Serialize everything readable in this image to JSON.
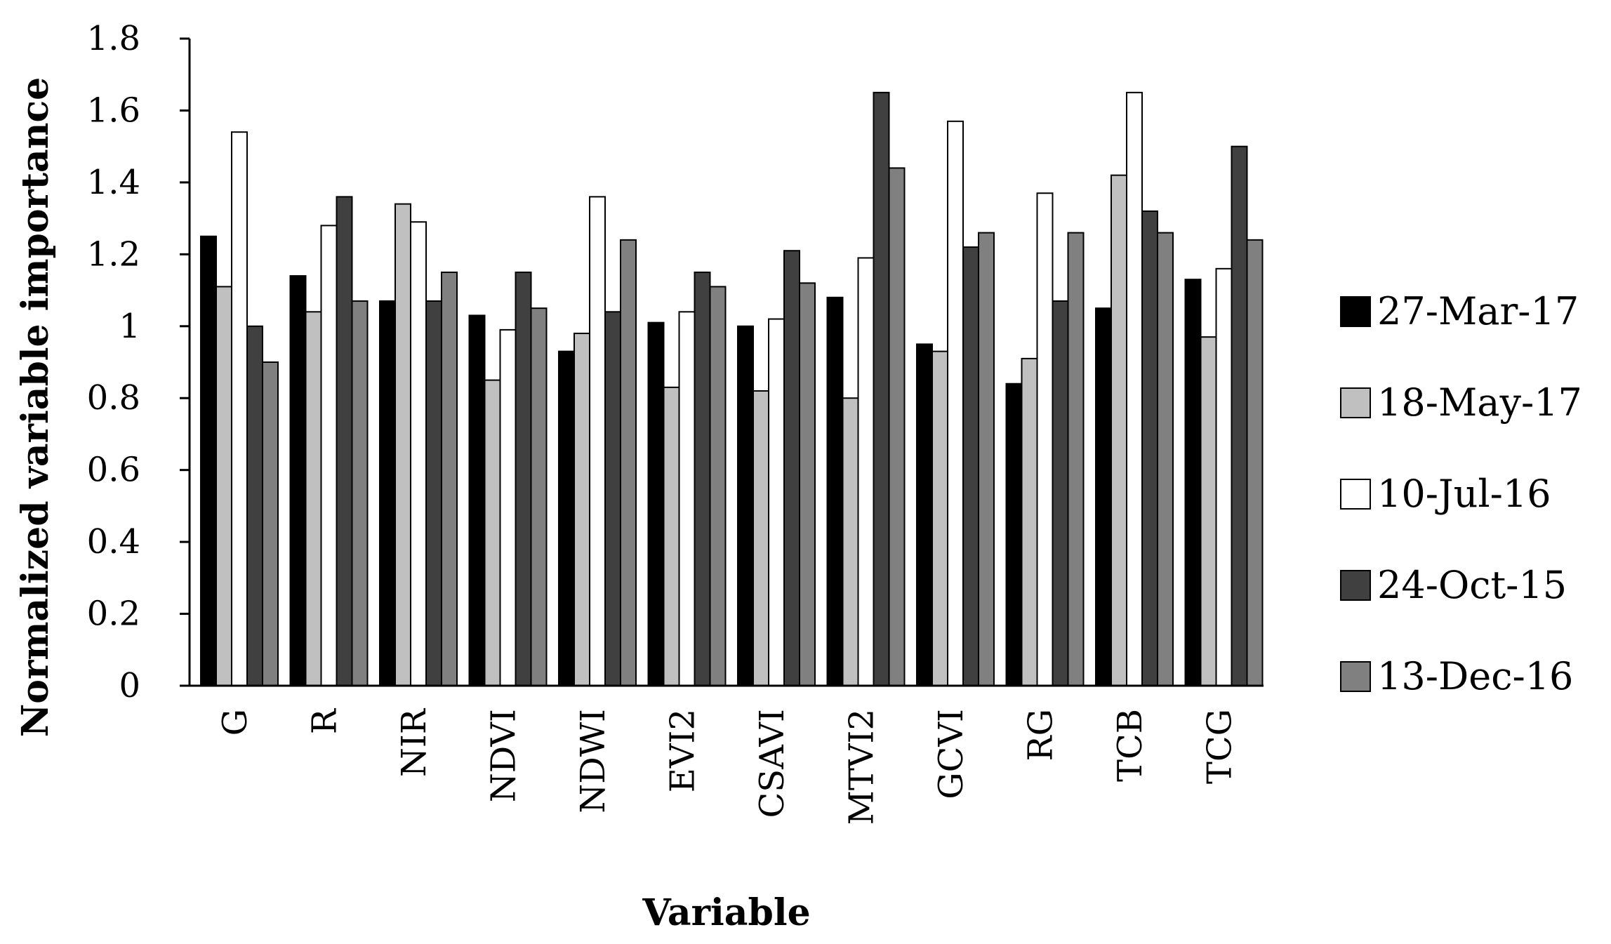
{
  "chart_data": {
    "type": "bar",
    "title": "",
    "xlabel": "Variable",
    "ylabel": "Normalized variable importance",
    "ylim": [
      0,
      1.8
    ],
    "yticks": [
      0,
      0.2,
      0.4,
      0.6,
      0.8,
      1,
      1.2,
      1.4,
      1.6,
      1.8
    ],
    "ytick_labels": [
      "0",
      "0.2",
      "0.4",
      "0.6",
      "0.8",
      "1",
      "1.2",
      "1.4",
      "1.6",
      "1.8"
    ],
    "grid": false,
    "legend_position": "right",
    "categories": [
      "G",
      "R",
      "NIR",
      "NDVI",
      "NDWI",
      "EVI2",
      "CSAVI",
      "MTVI2",
      "GCVI",
      "RG",
      "TCB",
      "TCG"
    ],
    "series": [
      {
        "name": "27-Mar-17",
        "color": "#000000",
        "values": [
          1.25,
          1.14,
          1.07,
          1.03,
          0.93,
          1.01,
          1.0,
          1.08,
          0.95,
          0.84,
          1.05,
          1.13
        ]
      },
      {
        "name": "18-May-17",
        "color": "#c0c0c0",
        "values": [
          1.11,
          1.04,
          1.34,
          0.85,
          0.98,
          0.83,
          0.82,
          0.8,
          0.93,
          0.91,
          1.42,
          0.97
        ]
      },
      {
        "name": "10-Jul-16",
        "color": "#ffffff",
        "values": [
          1.54,
          1.28,
          1.29,
          0.99,
          1.36,
          1.04,
          1.02,
          1.19,
          1.57,
          1.37,
          1.65,
          1.16
        ]
      },
      {
        "name": "24-Oct-15",
        "color": "#404040",
        "values": [
          1.0,
          1.36,
          1.07,
          1.15,
          1.04,
          1.15,
          1.21,
          1.65,
          1.22,
          1.07,
          1.32,
          1.5
        ]
      },
      {
        "name": "13-Dec-16",
        "color": "#808080",
        "values": [
          0.9,
          1.07,
          1.15,
          1.05,
          1.24,
          1.11,
          1.12,
          1.44,
          1.26,
          1.26,
          1.26,
          1.24
        ]
      }
    ]
  }
}
